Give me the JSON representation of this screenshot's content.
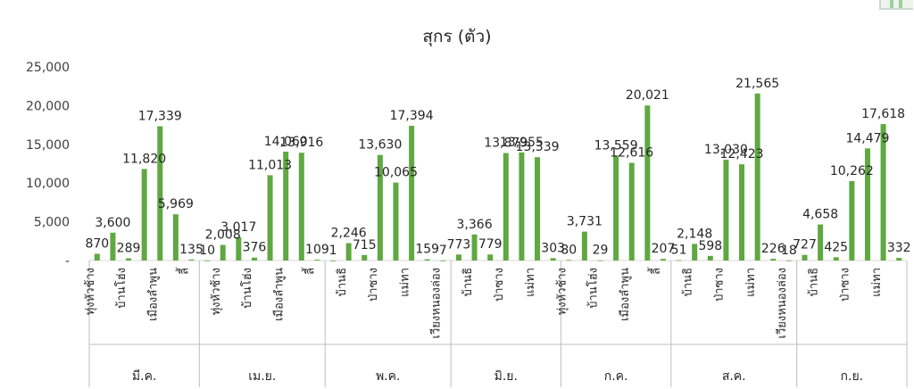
{
  "chart_data": {
    "type": "bar",
    "title": "สุกร (ตัว)",
    "xlabel": "",
    "ylabel": "",
    "ylim": [
      0,
      25000
    ],
    "yticks": [
      "-",
      "5,000",
      "10,000",
      "15,000",
      "20,000",
      "25,000"
    ],
    "grid": false,
    "legend": "none",
    "bar_color": "#5fa842",
    "groups": [
      {
        "label": "มี.ค.",
        "bars": [
          {
            "value": 870,
            "label": "870",
            "category": "ทุ่งหัวช้าง"
          },
          {
            "value": 3600,
            "label": "3,600",
            "category": ""
          },
          {
            "value": 289,
            "label": "289",
            "category": "บ้านโฮ่ง"
          },
          {
            "value": 11820,
            "label": "11,820",
            "category": ""
          },
          {
            "value": 17339,
            "label": "17,339",
            "category": "เมืองลำพูน"
          },
          {
            "value": 5969,
            "label": "5,969",
            "category": ""
          },
          {
            "value": 135,
            "label": "135",
            "category": "ลี้"
          }
        ]
      },
      {
        "label": "เม.ย.",
        "bars": [
          {
            "value": 10,
            "label": "10",
            "category": ""
          },
          {
            "value": 2008,
            "label": "2,008",
            "category": "ทุ่งหัวช้าง"
          },
          {
            "value": 3017,
            "label": "3,017",
            "category": ""
          },
          {
            "value": 376,
            "label": "376",
            "category": "บ้านโฮ่ง"
          },
          {
            "value": 11013,
            "label": "11,013",
            "category": ""
          },
          {
            "value": 14060,
            "label": "14,060",
            "category": "เมืองลำพูน"
          },
          {
            "value": 13916,
            "label": "13,916",
            "category": ""
          },
          {
            "value": 109,
            "label": "109",
            "category": "ลี้"
          }
        ]
      },
      {
        "label": "พ.ค.",
        "bars": [
          {
            "value": 1,
            "label": "1",
            "category": ""
          },
          {
            "value": 2246,
            "label": "2,246",
            "category": "บ้านธิ"
          },
          {
            "value": 715,
            "label": "715",
            "category": ""
          },
          {
            "value": 13630,
            "label": "13,630",
            "category": "ป่าซาง"
          },
          {
            "value": 10065,
            "label": "10,065",
            "category": ""
          },
          {
            "value": 17394,
            "label": "17,394",
            "category": "แม่ทา"
          },
          {
            "value": 159,
            "label": "159",
            "category": ""
          },
          {
            "value": 7,
            "label": "7",
            "category": "เวียงหนองล่อง"
          }
        ]
      },
      {
        "label": "มิ.ย.",
        "bars": [
          {
            "value": 773,
            "label": "773",
            "category": ""
          },
          {
            "value": 3366,
            "label": "3,366",
            "category": "บ้านธิ"
          },
          {
            "value": 779,
            "label": "779",
            "category": ""
          },
          {
            "value": 13879,
            "label": "13,879",
            "category": "ป่าซาง"
          },
          {
            "value": 13955,
            "label": "13,955",
            "category": ""
          },
          {
            "value": 13339,
            "label": "13,339",
            "category": "แม่ทา"
          },
          {
            "value": 303,
            "label": "303",
            "category": ""
          }
        ]
      },
      {
        "label": "ก.ค.",
        "bars": [
          {
            "value": 80,
            "label": "80",
            "category": "ทุ่งหัวช้าง"
          },
          {
            "value": 3731,
            "label": "3,731",
            "category": ""
          },
          {
            "value": 29,
            "label": "29",
            "category": "บ้านโฮ่ง"
          },
          {
            "value": 13559,
            "label": "13,559",
            "category": ""
          },
          {
            "value": 12616,
            "label": "12,616",
            "category": "เมืองลำพูน"
          },
          {
            "value": 20021,
            "label": "20,021",
            "category": ""
          },
          {
            "value": 207,
            "label": "207",
            "category": "ลี้"
          }
        ]
      },
      {
        "label": "ส.ค.",
        "bars": [
          {
            "value": 51,
            "label": "51",
            "category": ""
          },
          {
            "value": 2148,
            "label": "2,148",
            "category": "บ้านธิ"
          },
          {
            "value": 598,
            "label": "598",
            "category": ""
          },
          {
            "value": 13030,
            "label": "13,030",
            "category": "ป่าซาง"
          },
          {
            "value": 12423,
            "label": "12,423",
            "category": ""
          },
          {
            "value": 21565,
            "label": "21,565",
            "category": "แม่ทา"
          },
          {
            "value": 226,
            "label": "226",
            "category": ""
          },
          {
            "value": 18,
            "label": "18",
            "category": "เวียงหนองล่อง"
          }
        ]
      },
      {
        "label": "ก.ย.",
        "bars": [
          {
            "value": 727,
            "label": "727",
            "category": ""
          },
          {
            "value": 4658,
            "label": "4,658",
            "category": "บ้านธิ"
          },
          {
            "value": 425,
            "label": "425",
            "category": ""
          },
          {
            "value": 10262,
            "label": "10,262",
            "category": "ป่าซาง"
          },
          {
            "value": 14479,
            "label": "14,479",
            "category": ""
          },
          {
            "value": 17618,
            "label": "17,618",
            "category": "แม่ทา"
          },
          {
            "value": 332,
            "label": "332",
            "category": ""
          }
        ]
      }
    ]
  }
}
